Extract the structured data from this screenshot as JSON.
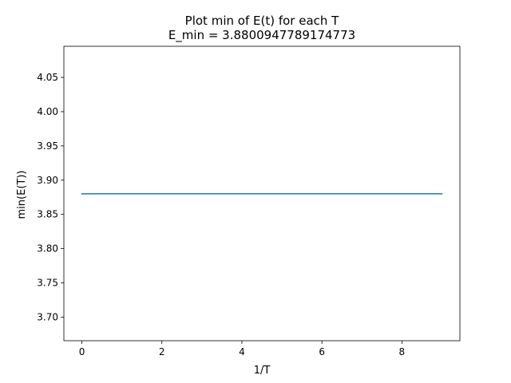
{
  "chart_data": {
    "type": "line",
    "title": "Plot min of E(t) for each T",
    "subtitle": "E_min = 3.8800947789174773",
    "xlabel": "1/T",
    "ylabel": "min(E(T))",
    "xlim": [
      -0.45,
      9.45
    ],
    "ylim": [
      3.6655,
      4.0955
    ],
    "xticks": [
      0,
      2,
      4,
      6,
      8
    ],
    "xtick_labels": [
      "0",
      "2",
      "4",
      "6",
      "8"
    ],
    "yticks": [
      3.7,
      3.75,
      3.8,
      3.85,
      3.9,
      3.95,
      4.0,
      4.05
    ],
    "ytick_labels": [
      "3.70",
      "3.75",
      "3.80",
      "3.85",
      "3.90",
      "3.95",
      "4.00",
      "4.05"
    ],
    "grid": false,
    "series": [
      {
        "color": "#1f77b4",
        "x": [
          0,
          9
        ],
        "y": [
          3.8800947789174773,
          3.8800947789174773
        ]
      }
    ]
  }
}
